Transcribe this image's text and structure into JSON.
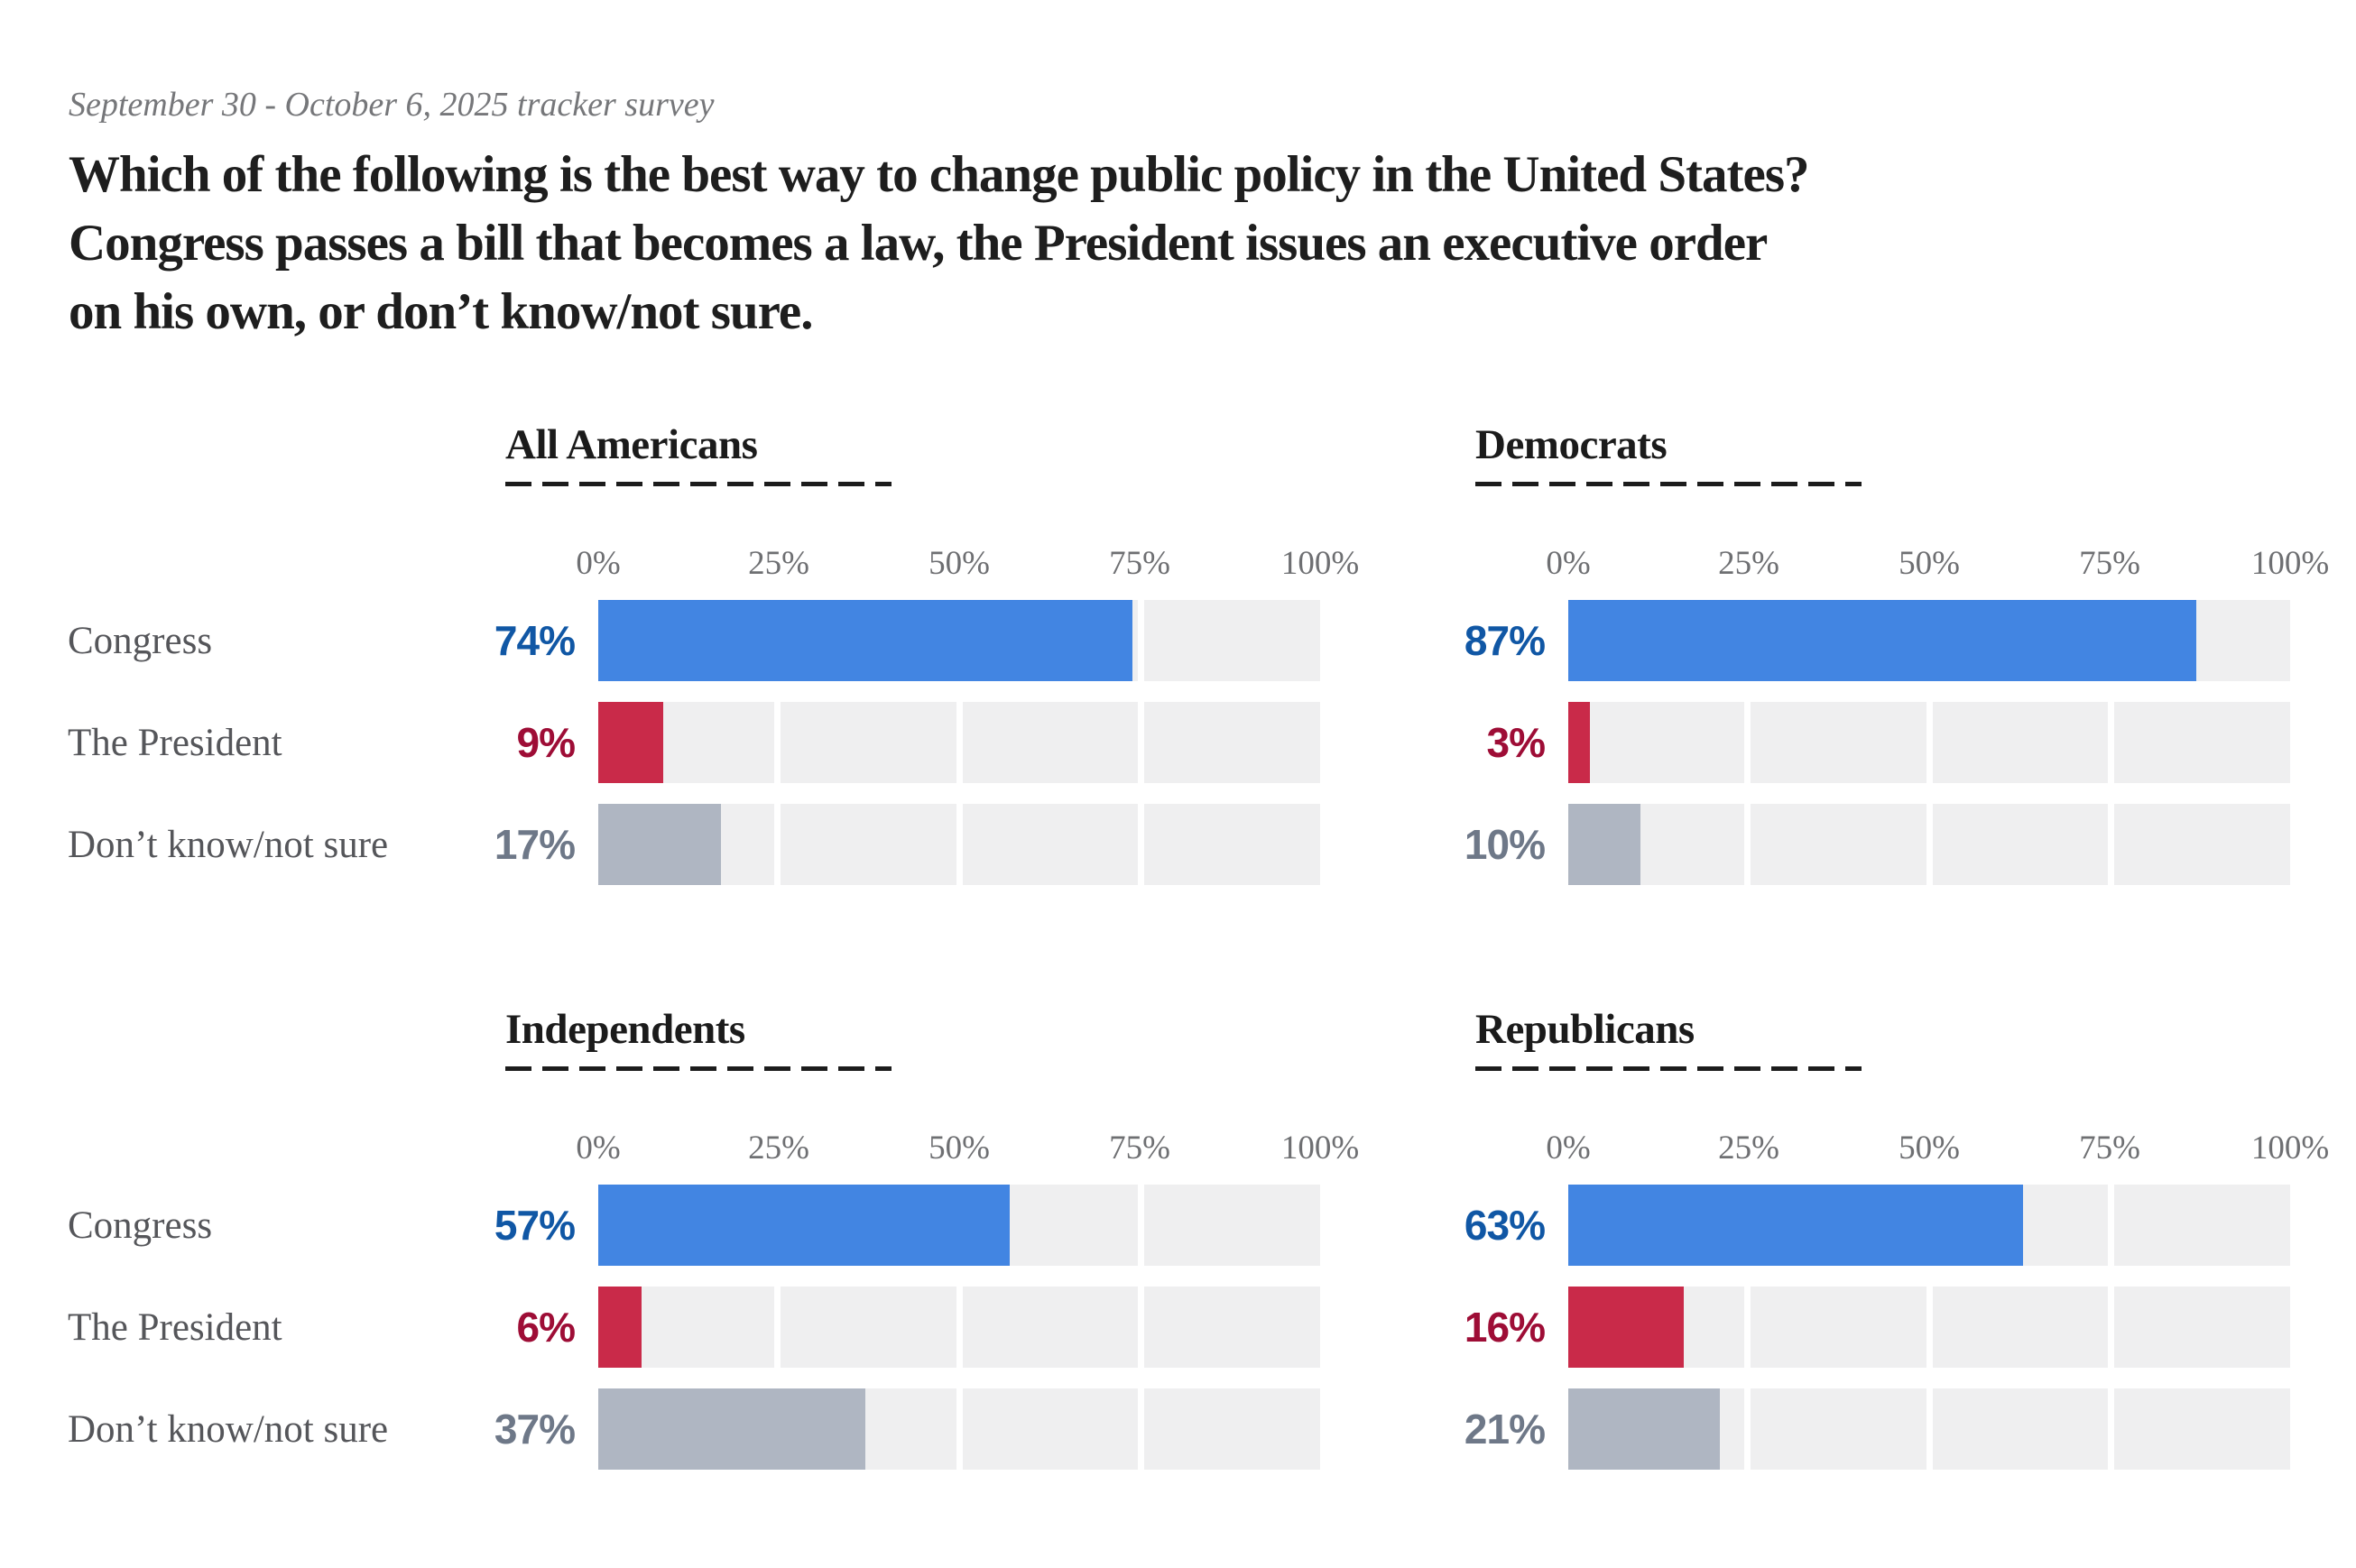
{
  "page": {
    "subtitle": "September 30 - October 6, 2025 tracker survey"
  },
  "question": {
    "full_text": "Which of the following is the best way to change public policy in the United States? Congress passes a bill that becomes a law, the President issues an executive order on his own, or don’t know/not sure.",
    "lines": [
      "Which of the following is the best way to change public policy in the United States?",
      "Congress passes a bill that becomes a law, the President issues an executive order",
      "on his own, or don’t know/not sure."
    ]
  },
  "chart_data": {
    "type": "bar",
    "orientation": "horizontal",
    "layout": "2x2 small multiples, shared category labels on left column, legend none",
    "unit": "%",
    "xlim": [
      0,
      100
    ],
    "axis_ticks": [
      "0%",
      "25%",
      "50%",
      "75%",
      "100%"
    ],
    "grid": "track split into four quarter segments with thin white gaps at 25/50/75",
    "categories": [
      "Congress",
      "The President",
      "Don’t know/not sure"
    ],
    "groups": [
      {
        "title": "All Americans",
        "values": [
          74,
          9,
          17
        ]
      },
      {
        "title": "Democrats",
        "values": [
          87,
          3,
          10
        ]
      },
      {
        "title": "Independents",
        "values": [
          57,
          6,
          37
        ]
      },
      {
        "title": "Republicans",
        "values": [
          63,
          16,
          21
        ]
      }
    ],
    "bar_colors": [
      "#4285E2",
      "#C92A49",
      "#AFB6C2"
    ],
    "value_colors": [
      "#1057A5",
      "#9E0D36",
      "#6E7888"
    ],
    "track_color": "#EFEFF0",
    "title_underline_color": "#1C1C1C"
  }
}
